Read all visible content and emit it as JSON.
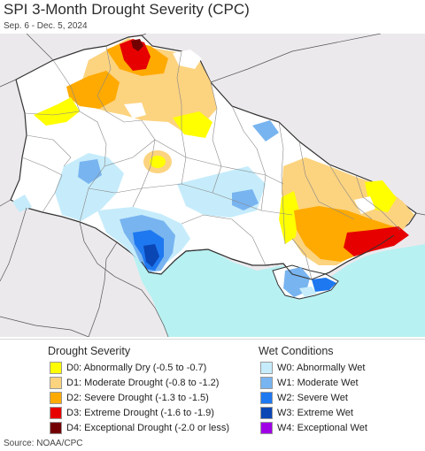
{
  "header": {
    "title": "SPI 3-Month Drought Severity (CPC)",
    "subtitle": "Sep. 6 - Dec. 5, 2024"
  },
  "legend": {
    "drought_heading": "Drought Severity",
    "wet_heading": "Wet Conditions",
    "drought_items": [
      {
        "label": "D0: Abnormally Dry (-0.5 to -0.7)",
        "color": "#ffff00"
      },
      {
        "label": "D1: Moderate Drought (-0.8 to -1.2)",
        "color": "#fcd37f"
      },
      {
        "label": "D2: Severe Drought (-1.3 to -1.5)",
        "color": "#ffaa00"
      },
      {
        "label": "D3: Extreme Drought (-1.6 to -1.9)",
        "color": "#e60000"
      },
      {
        "label": "D4: Exceptional Drought (-2.0 or less)",
        "color": "#730000"
      }
    ],
    "wet_items": [
      {
        "label": "W0: Abnormally Wet",
        "color": "#c6ecfb"
      },
      {
        "label": "W1: Moderate Wet",
        "color": "#78b4f0"
      },
      {
        "label": "W2: Severe Wet",
        "color": "#1e78f0"
      },
      {
        "label": "W3: Extreme Wet",
        "color": "#0a46b4"
      },
      {
        "label": "W4: Exceptional Wet",
        "color": "#a000e6"
      }
    ]
  },
  "footer": {
    "source": "Source: NOAA/CPC"
  }
}
